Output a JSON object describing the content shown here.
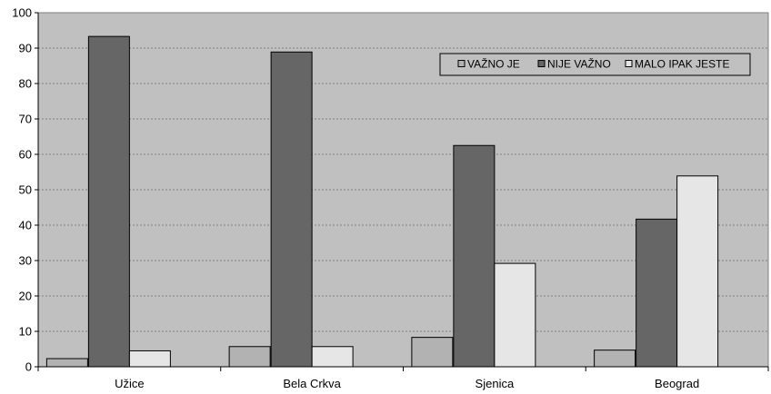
{
  "chart_data": {
    "type": "bar",
    "title": "",
    "xlabel": "",
    "ylabel": "",
    "categories": [
      "Užice",
      "Bela Crkva",
      "Sjenica",
      "Beograd"
    ],
    "series": [
      {
        "name": "VAŽNO JE",
        "values": [
          2.3,
          5.7,
          8.3,
          4.7
        ],
        "color": "#b2b2b2"
      },
      {
        "name": "NIJE VAŽNO",
        "values": [
          93.3,
          88.9,
          62.5,
          41.7
        ],
        "color": "#666666"
      },
      {
        "name": "MALO IPAK JESTE",
        "values": [
          4.5,
          5.7,
          29.2,
          53.9
        ],
        "color": "#e6e6e6"
      }
    ],
    "ylim": [
      0,
      100
    ],
    "yticks": [
      "0",
      "10",
      "20",
      "30",
      "40",
      "50",
      "60",
      "70",
      "80",
      "90",
      "100"
    ],
    "grid": true,
    "legend_position": "top-right",
    "plot_background": "#c0c0c0"
  }
}
